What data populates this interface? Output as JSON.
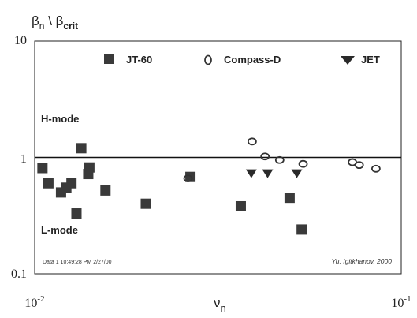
{
  "chart_data": {
    "type": "scatter",
    "x_scale": "log",
    "y_scale": "log",
    "xlim": [
      0.01,
      0.1
    ],
    "ylim": [
      0.1,
      10
    ],
    "ylabel": {
      "main": "β",
      "sub1": "n",
      "sep": " \\ ",
      "main2": "β",
      "sub2": "crit"
    },
    "xlabel": {
      "main": "ν",
      "sub": "n"
    },
    "x_ticks": [
      {
        "base": "10",
        "exp": "-2"
      },
      {
        "base": "10",
        "exp": "-1"
      }
    ],
    "y_ticks": [
      "10",
      "1",
      "0.1"
    ],
    "reference_line": 1,
    "legend_placement": "top",
    "legend": [
      {
        "name": "JT-60",
        "marker": "square"
      },
      {
        "name": "Compass-D",
        "marker": "circle"
      },
      {
        "name": "JET",
        "marker": "triangle-down"
      }
    ],
    "annotations": {
      "h_mode": "H-mode",
      "l_mode": "L-mode",
      "stamp": "Data 1 10:49:28 PM 2/27/00",
      "credit": "Yu. Igitkhanov, 2000"
    },
    "series": [
      {
        "name": "JT-60",
        "marker": "square",
        "points": [
          [
            0.0105,
            0.81
          ],
          [
            0.0109,
            0.6
          ],
          [
            0.0118,
            0.5
          ],
          [
            0.0122,
            0.55
          ],
          [
            0.0126,
            0.6
          ],
          [
            0.013,
            0.33
          ],
          [
            0.0134,
            1.2
          ],
          [
            0.014,
            0.72
          ],
          [
            0.0141,
            0.82
          ],
          [
            0.0156,
            0.52
          ],
          [
            0.0201,
            0.4
          ],
          [
            0.0266,
            0.68
          ],
          [
            0.0365,
            0.38
          ],
          [
            0.0496,
            0.45
          ],
          [
            0.0535,
            0.24
          ]
        ]
      },
      {
        "name": "Compass-D",
        "marker": "circle",
        "points": [
          [
            0.0262,
            0.66
          ],
          [
            0.0392,
            1.37
          ],
          [
            0.0425,
            1.02
          ],
          [
            0.0466,
            0.95
          ],
          [
            0.054,
            0.88
          ],
          [
            0.0736,
            0.91
          ],
          [
            0.0768,
            0.86
          ],
          [
            0.0853,
            0.8
          ]
        ]
      },
      {
        "name": "JET",
        "marker": "triangle-down",
        "points": [
          [
            0.039,
            0.73
          ],
          [
            0.0432,
            0.73
          ],
          [
            0.0519,
            0.73
          ]
        ]
      }
    ]
  }
}
